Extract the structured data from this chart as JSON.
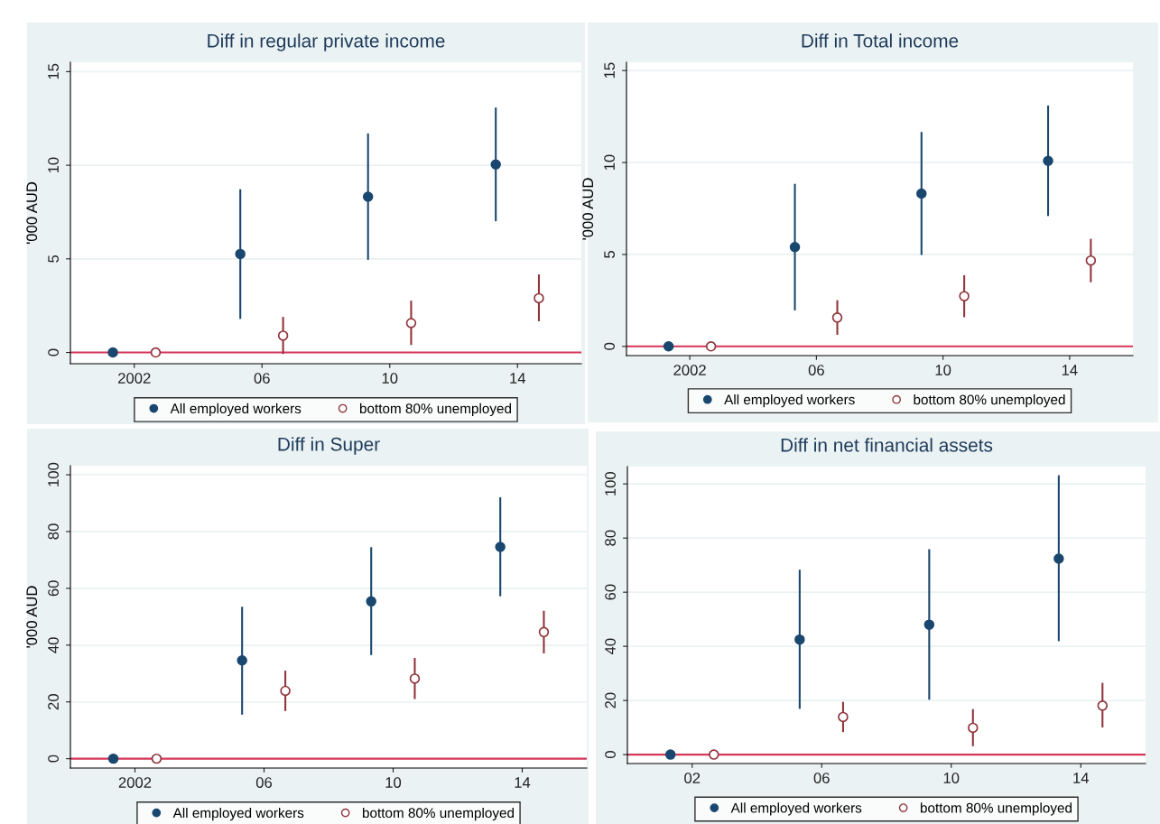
{
  "chart_data": [
    {
      "type": "scatter",
      "title": "Diff in regular private income",
      "ylabel": "'000 AUD",
      "xlim": [
        2000,
        2016
      ],
      "xticks": [
        2002,
        {
          "value": 2006,
          "label": "06"
        },
        {
          "value": 2010,
          "label": "10"
        },
        {
          "value": 2014,
          "label": "14"
        }
      ],
      "ylim": [
        -0.6,
        15.5
      ],
      "yticks": [
        0,
        5,
        10,
        15
      ],
      "grid": "y",
      "legend": "bottom",
      "marker": "circle",
      "series": [
        {
          "name": "All employed workers",
          "color": "#1a476f",
          "x": [
            2001.33,
            2005.32,
            2009.32,
            2013.32
          ],
          "values": [
            0,
            5.26,
            8.32,
            10.04
          ],
          "errors": [
            null,
            [
              1.79,
              8.72
            ],
            [
              4.95,
              11.7
            ],
            [
              7.01,
              13.08
            ]
          ]
        },
        {
          "name": "bottom 80% unemployed",
          "color": "#90353b",
          "x": [
            2002.67,
            2006.66,
            2010.67,
            2014.67
          ],
          "values": [
            0,
            0.9,
            1.57,
            2.9
          ],
          "errors": [
            null,
            [
              -0.08,
              1.9
            ],
            [
              0.4,
              2.77
            ],
            [
              1.67,
              4.17
            ]
          ]
        }
      ],
      "ref_lines": [
        {
          "axis": "y",
          "value": 0,
          "color": "#d7365a"
        }
      ]
    },
    {
      "type": "scatter",
      "title": "Diff in Total income",
      "ylabel": "'000 AUD",
      "xlim": [
        2000,
        2016
      ],
      "xticks": [
        2002,
        {
          "value": 2006,
          "label": "06"
        },
        {
          "value": 2010,
          "label": "10"
        },
        {
          "value": 2014,
          "label": "14"
        }
      ],
      "ylim": [
        -0.5,
        15.45
      ],
      "yticks": [
        0,
        5,
        10,
        15
      ],
      "grid": "y",
      "legend": "bottom",
      "marker": "circle",
      "series": [
        {
          "name": "All employed workers",
          "color": "#1a476f",
          "x": [
            2001.33,
            2005.32,
            2009.32,
            2013.32
          ],
          "values": [
            0,
            5.4,
            8.31,
            10.09
          ],
          "errors": [
            null,
            [
              1.96,
              8.84
            ],
            [
              4.97,
              11.66
            ],
            [
              7.09,
              13.1
            ]
          ]
        },
        {
          "name": "bottom 80% unemployed",
          "color": "#90353b",
          "x": [
            2002.67,
            2006.66,
            2010.67,
            2014.67
          ],
          "values": [
            0,
            1.57,
            2.73,
            4.67
          ],
          "errors": [
            null,
            [
              0.63,
              2.51
            ],
            [
              1.59,
              3.87
            ],
            [
              3.49,
              5.85
            ]
          ]
        }
      ],
      "ref_lines": [
        {
          "axis": "y",
          "value": 0,
          "color": "#d7365a"
        }
      ]
    },
    {
      "type": "scatter",
      "title": "Diff in Super",
      "ylabel": "'000 AUD",
      "xlim": [
        2000,
        2016
      ],
      "xticks": [
        2002,
        {
          "value": 2006,
          "label": "06"
        },
        {
          "value": 2010,
          "label": "10"
        },
        {
          "value": 2014,
          "label": "14"
        }
      ],
      "ylim": [
        -3.3,
        103.2
      ],
      "yticks": [
        0,
        20,
        40,
        60,
        80,
        100
      ],
      "grid": "y",
      "legend": "bottom",
      "marker": "circle",
      "series": [
        {
          "name": "All employed workers",
          "color": "#1a476f",
          "x": [
            2001.33,
            2005.32,
            2009.32,
            2013.32
          ],
          "values": [
            0,
            34.6,
            55.4,
            74.6
          ],
          "errors": [
            null,
            [
              15.5,
              53.5
            ],
            [
              36.5,
              74.5
            ],
            [
              57.2,
              92.1
            ]
          ]
        },
        {
          "name": "bottom 80% unemployed",
          "color": "#90353b",
          "x": [
            2002.67,
            2006.66,
            2010.67,
            2014.67
          ],
          "values": [
            0,
            23.9,
            28.2,
            44.6
          ],
          "errors": [
            null,
            [
              16.8,
              31.0
            ],
            [
              21.0,
              35.5
            ],
            [
              37.1,
              52.1
            ]
          ]
        }
      ],
      "ref_lines": [
        {
          "axis": "y",
          "value": 0,
          "color": "#d7365a"
        }
      ]
    },
    {
      "type": "scatter",
      "title": "Diff in net financial assets",
      "xlim": [
        2000,
        2016
      ],
      "xticks": [
        {
          "value": 2002,
          "label": "02"
        },
        {
          "value": 2006,
          "label": "06"
        },
        {
          "value": 2010,
          "label": "10"
        },
        {
          "value": 2014,
          "label": "14"
        }
      ],
      "ylim": [
        -3.3,
        106.4
      ],
      "yticks": [
        0,
        20,
        40,
        60,
        80,
        100
      ],
      "grid": "y",
      "legend": "bottom",
      "marker": "circle",
      "series": [
        {
          "name": "All employed workers",
          "color": "#1a476f",
          "x": [
            2001.33,
            2005.32,
            2009.32,
            2013.32
          ],
          "values": [
            0,
            42.5,
            48.0,
            72.4
          ],
          "errors": [
            null,
            [
              16.9,
              68.3
            ],
            [
              20.3,
              75.9
            ],
            [
              41.9,
              103.2
            ]
          ]
        },
        {
          "name": "bottom 80% unemployed",
          "color": "#90353b",
          "x": [
            2002.67,
            2006.66,
            2010.67,
            2014.67
          ],
          "values": [
            0,
            13.9,
            9.9,
            18.1
          ],
          "errors": [
            null,
            [
              8.3,
              19.5
            ],
            [
              3.1,
              16.8
            ],
            [
              10.0,
              26.5
            ]
          ]
        }
      ],
      "ref_lines": [
        {
          "axis": "y",
          "value": 0,
          "color": "#d7365a"
        }
      ]
    }
  ]
}
